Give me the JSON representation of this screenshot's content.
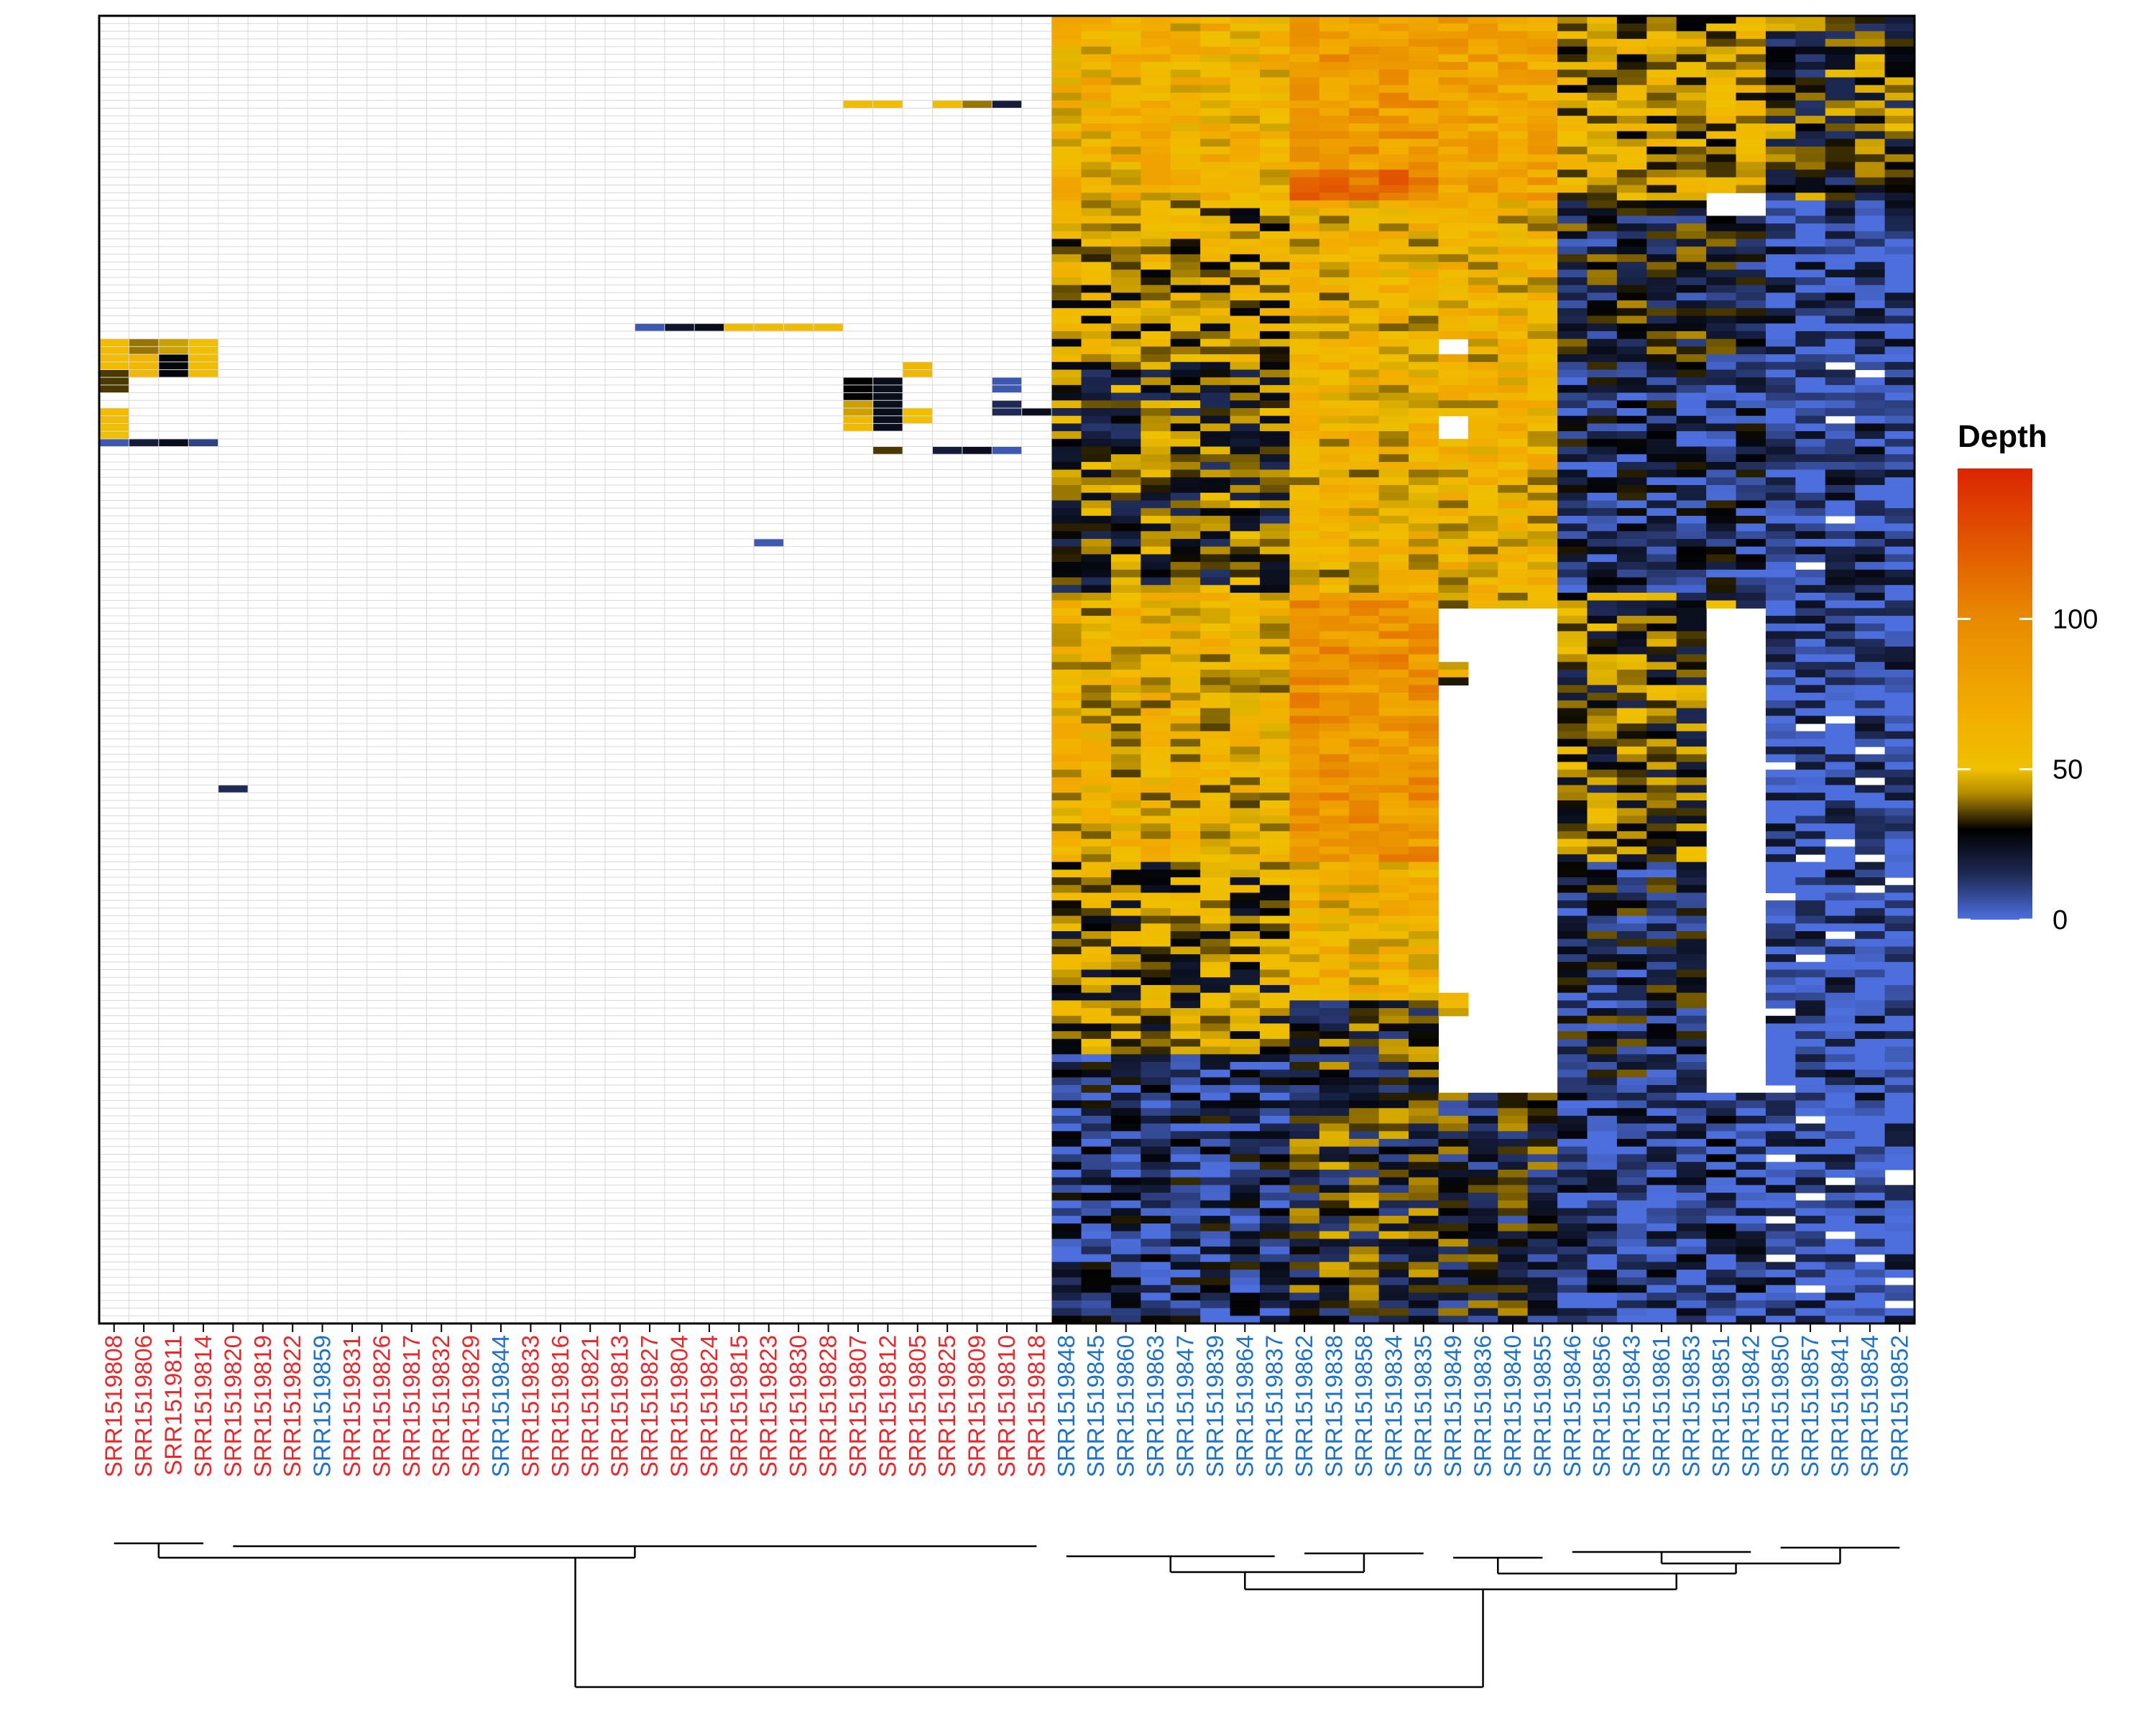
{
  "chart_data": {
    "type": "heatmap",
    "legend": {
      "title": "Depth",
      "ticks": [
        0,
        50,
        100
      ],
      "range": [
        0,
        150
      ],
      "placement": "right",
      "colors": [
        {
          "value": 0,
          "color": "#4d6fde"
        },
        {
          "value": 15,
          "color": "#1e2a55"
        },
        {
          "value": 30,
          "color": "#000000"
        },
        {
          "value": 42,
          "color": "#b58c00"
        },
        {
          "value": 50,
          "color": "#f0c000"
        },
        {
          "value": 70,
          "color": "#f2ac00"
        },
        {
          "value": 100,
          "color": "#e88a00"
        },
        {
          "value": 150,
          "color": "#dc2400"
        }
      ]
    },
    "columns": [
      {
        "id": "SRR1519808",
        "group": "red"
      },
      {
        "id": "SRR1519806",
        "group": "red"
      },
      {
        "id": "SRR1519811",
        "group": "red"
      },
      {
        "id": "SRR1519814",
        "group": "red"
      },
      {
        "id": "SRR1519820",
        "group": "red"
      },
      {
        "id": "SRR1519819",
        "group": "red"
      },
      {
        "id": "SRR1519822",
        "group": "red"
      },
      {
        "id": "SRR1519859",
        "group": "blue"
      },
      {
        "id": "SRR1519831",
        "group": "red"
      },
      {
        "id": "SRR1519826",
        "group": "red"
      },
      {
        "id": "SRR1519817",
        "group": "red"
      },
      {
        "id": "SRR1519832",
        "group": "red"
      },
      {
        "id": "SRR1519829",
        "group": "red"
      },
      {
        "id": "SRR1519844",
        "group": "blue"
      },
      {
        "id": "SRR1519833",
        "group": "red"
      },
      {
        "id": "SRR1519816",
        "group": "red"
      },
      {
        "id": "SRR1519821",
        "group": "red"
      },
      {
        "id": "SRR1519813",
        "group": "red"
      },
      {
        "id": "SRR1519827",
        "group": "red"
      },
      {
        "id": "SRR1519804",
        "group": "red"
      },
      {
        "id": "SRR1519824",
        "group": "red"
      },
      {
        "id": "SRR1519815",
        "group": "red"
      },
      {
        "id": "SRR1519823",
        "group": "red"
      },
      {
        "id": "SRR1519830",
        "group": "red"
      },
      {
        "id": "SRR1519828",
        "group": "red"
      },
      {
        "id": "SRR1519807",
        "group": "red"
      },
      {
        "id": "SRR1519812",
        "group": "red"
      },
      {
        "id": "SRR1519805",
        "group": "red"
      },
      {
        "id": "SRR1519825",
        "group": "red"
      },
      {
        "id": "SRR1519809",
        "group": "red"
      },
      {
        "id": "SRR1519810",
        "group": "red"
      },
      {
        "id": "SRR1519818",
        "group": "red"
      },
      {
        "id": "SRR1519848",
        "group": "blue"
      },
      {
        "id": "SRR1519845",
        "group": "blue"
      },
      {
        "id": "SRR1519860",
        "group": "blue"
      },
      {
        "id": "SRR1519863",
        "group": "blue"
      },
      {
        "id": "SRR1519847",
        "group": "blue"
      },
      {
        "id": "SRR1519839",
        "group": "blue"
      },
      {
        "id": "SRR1519864",
        "group": "blue"
      },
      {
        "id": "SRR1519837",
        "group": "blue"
      },
      {
        "id": "SRR1519862",
        "group": "blue"
      },
      {
        "id": "SRR1519838",
        "group": "blue"
      },
      {
        "id": "SRR1519858",
        "group": "blue"
      },
      {
        "id": "SRR1519834",
        "group": "blue"
      },
      {
        "id": "SRR1519835",
        "group": "blue"
      },
      {
        "id": "SRR1519849",
        "group": "blue"
      },
      {
        "id": "SRR1519836",
        "group": "blue"
      },
      {
        "id": "SRR1519840",
        "group": "blue"
      },
      {
        "id": "SRR1519855",
        "group": "blue"
      },
      {
        "id": "SRR1519846",
        "group": "blue"
      },
      {
        "id": "SRR1519856",
        "group": "blue"
      },
      {
        "id": "SRR1519843",
        "group": "blue"
      },
      {
        "id": "SRR1519861",
        "group": "blue"
      },
      {
        "id": "SRR1519853",
        "group": "blue"
      },
      {
        "id": "SRR1519851",
        "group": "blue"
      },
      {
        "id": "SRR1519842",
        "group": "blue"
      },
      {
        "id": "SRR1519850",
        "group": "blue"
      },
      {
        "id": "SRR1519857",
        "group": "blue"
      },
      {
        "id": "SRR1519841",
        "group": "blue"
      },
      {
        "id": "SRR1519854",
        "group": "blue"
      },
      {
        "id": "SRR1519852",
        "group": "blue"
      }
    ],
    "row_count": 170,
    "grid": true,
    "dendrogram": {
      "position": "bottom",
      "split": [
        [
          "SRR1519808",
          "SRR1519818"
        ],
        [
          "SRR1519848",
          "SRR1519852"
        ]
      ]
    },
    "cells": {
      "SRR1519808": [
        [
          42,
          45,
          55
        ],
        [
          46,
          48,
          35
        ],
        [
          51,
          52,
          55
        ],
        [
          53,
          54,
          50
        ],
        [
          55,
          55,
          5
        ]
      ],
      "SRR1519806": [
        [
          42,
          43,
          40
        ],
        [
          44,
          46,
          60
        ],
        [
          55,
          55,
          20
        ]
      ],
      "SRR1519811": [
        [
          42,
          43,
          45
        ],
        [
          44,
          46,
          28
        ],
        [
          55,
          55,
          25
        ]
      ],
      "SRR1519814": [
        [
          42,
          43,
          50
        ],
        [
          44,
          46,
          55
        ],
        [
          55,
          55,
          10
        ]
      ],
      "SRR1519820": [
        [
          100,
          100,
          15
        ]
      ],
      "SRR1519827": [
        [
          40,
          40,
          5
        ]
      ],
      "SRR1519804": [
        [
          40,
          40,
          22
        ]
      ],
      "SRR1519824": [
        [
          40,
          40,
          25
        ]
      ],
      "SRR1519815": [
        [
          40,
          40,
          55
        ]
      ],
      "SRR1519823": [
        [
          40,
          40,
          55
        ],
        [
          68,
          68,
          5
        ]
      ],
      "SRR1519830": [
        [
          40,
          40,
          55
        ]
      ],
      "SRR1519828": [
        [
          40,
          40,
          55
        ]
      ],
      "SRR1519807": [
        [
          11,
          11,
          55
        ],
        [
          47,
          49,
          30
        ],
        [
          50,
          51,
          45
        ],
        [
          52,
          53,
          58
        ]
      ],
      "SRR1519812": [
        [
          11,
          11,
          55
        ],
        [
          47,
          53,
          25
        ],
        [
          56,
          56,
          35
        ]
      ],
      "SRR1519805": [
        [
          45,
          46,
          60
        ],
        [
          51,
          52,
          50
        ]
      ],
      "SRR1519825": [
        [
          11,
          11,
          55
        ],
        [
          56,
          56,
          20
        ]
      ],
      "SRR1519809": [
        [
          11,
          11,
          40
        ],
        [
          56,
          56,
          25
        ]
      ],
      "SRR1519810": [
        [
          11,
          11,
          20
        ],
        [
          47,
          48,
          5
        ],
        [
          50,
          51,
          15
        ],
        [
          56,
          56,
          5
        ]
      ],
      "SRR1519818": [
        [
          51,
          51,
          25
        ]
      ]
    },
    "blank_blocks": [
      {
        "columns": [
          "SRR1519849"
        ],
        "rows": [
          42,
          43
        ]
      },
      {
        "columns": [
          "SRR1519849"
        ],
        "rows": [
          52,
          54
        ]
      },
      {
        "columns": [
          "SRR1519836",
          "SRR1519840",
          "SRR1519855"
        ],
        "rows": [
          77,
          139
        ]
      },
      {
        "columns": [
          "SRR1519849"
        ],
        "rows": [
          77,
          83
        ]
      },
      {
        "columns": [
          "SRR1519849"
        ],
        "rows": [
          87,
          126
        ]
      },
      {
        "columns": [
          "SRR1519849"
        ],
        "rows": [
          130,
          139
        ]
      },
      {
        "columns": [
          "SRR1519851",
          "SRR1519842"
        ],
        "rows": [
          23,
          25
        ]
      },
      {
        "columns": [
          "SRR1519851",
          "SRR1519842"
        ],
        "rows": [
          77,
          139
        ]
      }
    ]
  }
}
